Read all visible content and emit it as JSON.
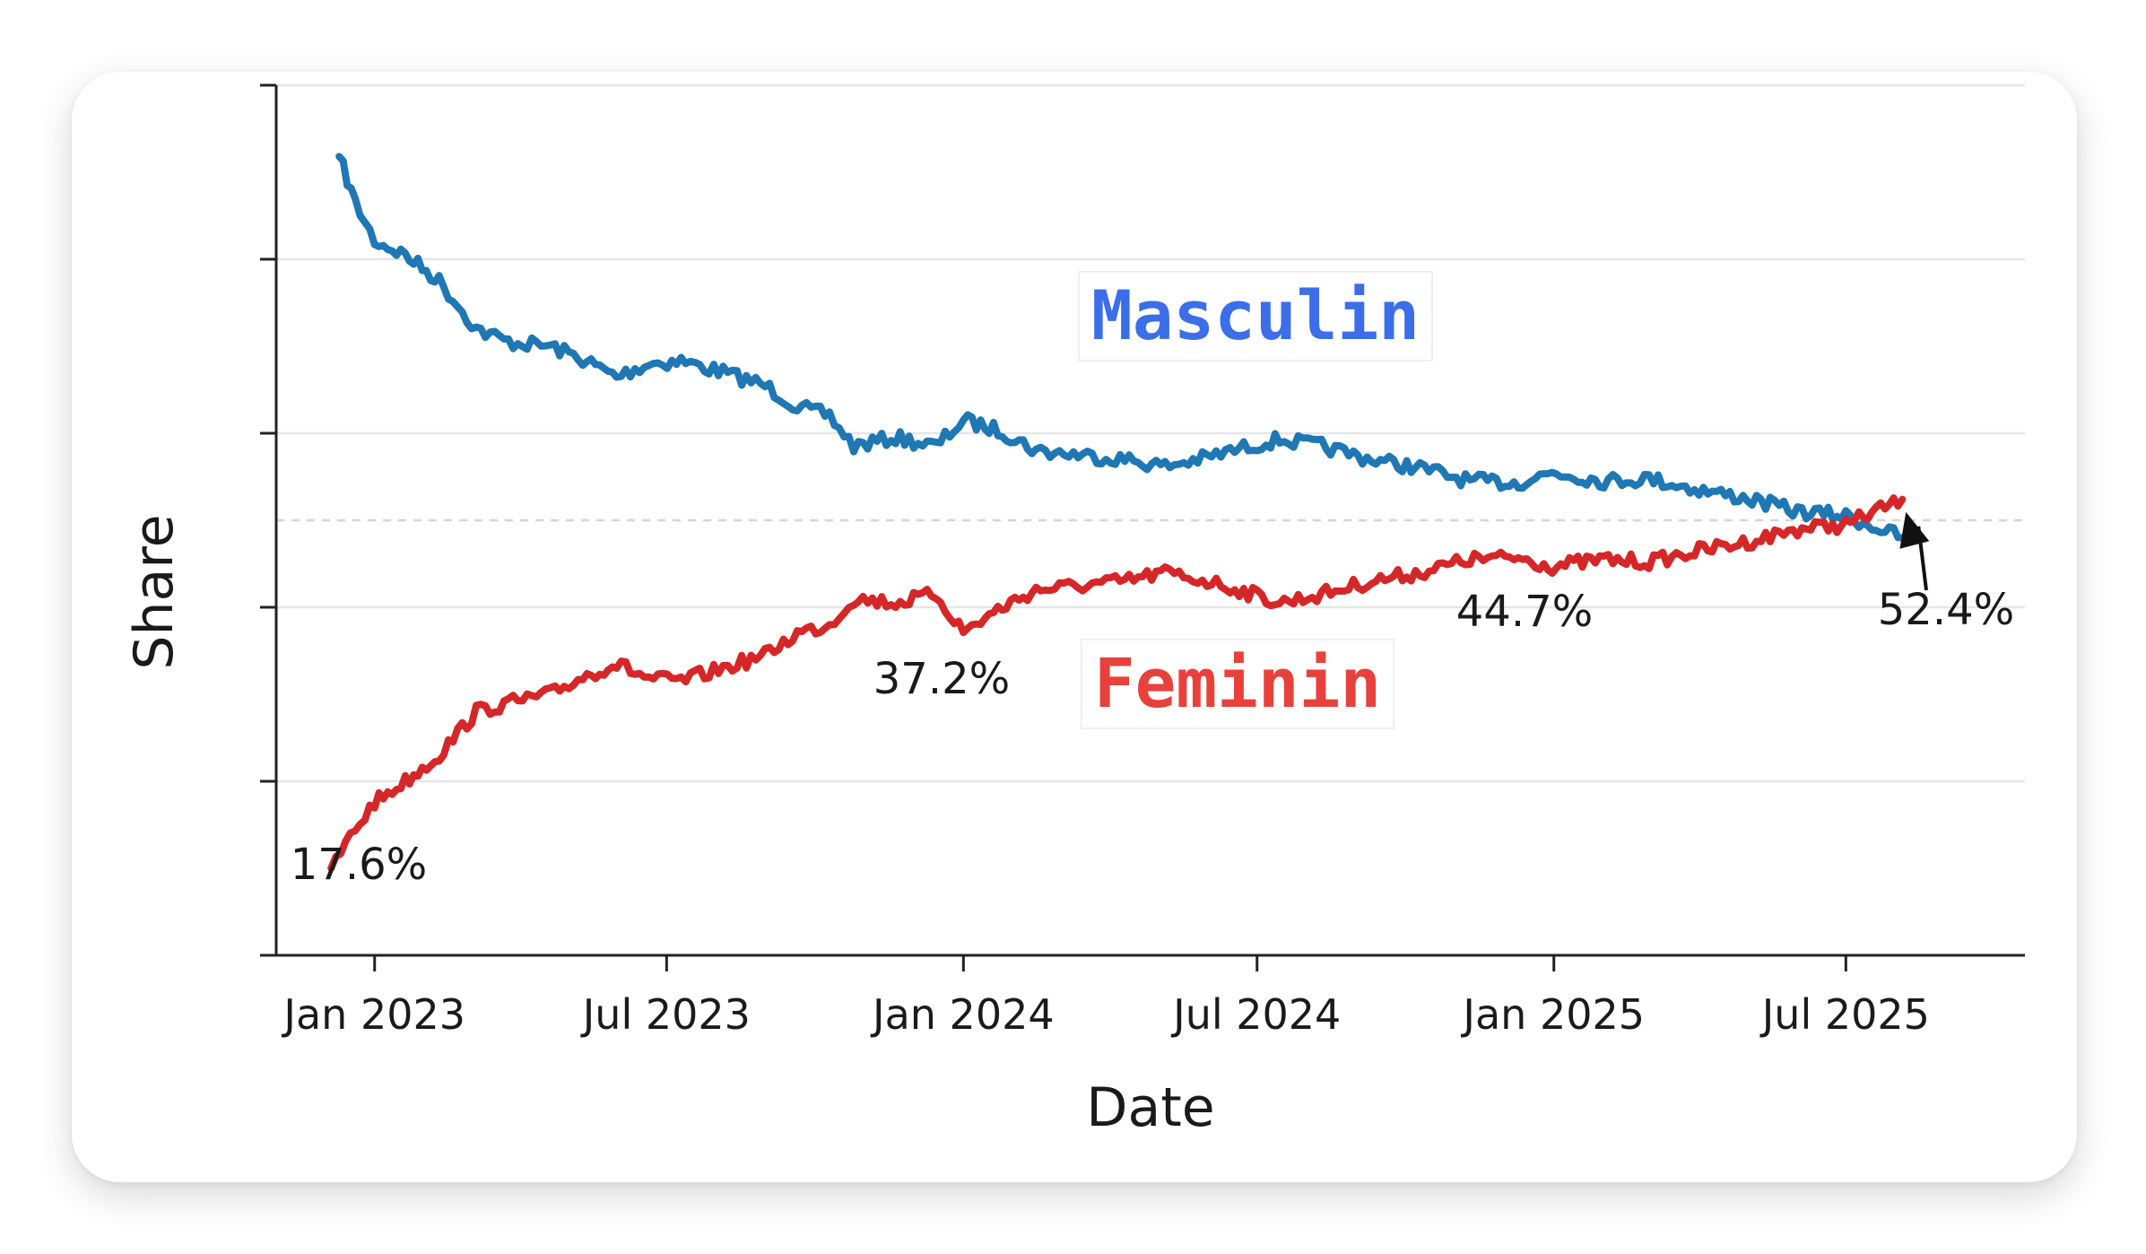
{
  "chart_data": {
    "type": "line",
    "title": "",
    "xlabel": "Date",
    "ylabel": "Share",
    "xlim": [
      "2022-11-01",
      "2025-10-20"
    ],
    "ylim": [
      0,
      100
    ],
    "y_ticks": [
      0,
      20,
      40,
      60,
      80,
      100
    ],
    "y_tick_labels_shown": false,
    "reference_line": {
      "y": 50,
      "style": "dashed"
    },
    "x_ticks": [
      {
        "date": "2023-01-01",
        "label": "Jan 2023"
      },
      {
        "date": "2023-07-01",
        "label": "Jul 2023"
      },
      {
        "date": "2024-01-01",
        "label": "Jan 2024"
      },
      {
        "date": "2024-07-01",
        "label": "Jul 2024"
      },
      {
        "date": "2025-01-01",
        "label": "Jan 2025"
      },
      {
        "date": "2025-07-01",
        "label": "Jul 2025"
      }
    ],
    "grid": "horizontal",
    "legend": "none",
    "series": [
      {
        "name": "Masculin",
        "color": "#1f77b4",
        "label_color": "#3b6ee8",
        "points": [
          [
            "2022-12-10",
            91.8
          ],
          [
            "2022-12-20",
            86.5
          ],
          [
            "2023-01-01",
            82.1
          ],
          [
            "2023-01-20",
            80.5
          ],
          [
            "2023-02-10",
            77.5
          ],
          [
            "2023-03-05",
            72.0
          ],
          [
            "2023-03-25",
            70.5
          ],
          [
            "2023-04-20",
            70.0
          ],
          [
            "2023-05-10",
            68.5
          ],
          [
            "2023-05-31",
            66.5
          ],
          [
            "2023-06-20",
            68.0
          ],
          [
            "2023-07-10",
            68.3
          ],
          [
            "2023-08-05",
            67.0
          ],
          [
            "2023-08-31",
            65.5
          ],
          [
            "2023-09-20",
            63.0
          ],
          [
            "2023-10-10",
            62.0
          ],
          [
            "2023-10-25",
            58.5
          ],
          [
            "2023-11-20",
            59.5
          ],
          [
            "2023-12-15",
            58.5
          ],
          [
            "2024-01-01",
            61.5
          ],
          [
            "2024-01-25",
            60.2
          ],
          [
            "2024-02-15",
            58.0
          ],
          [
            "2024-03-15",
            57.5
          ],
          [
            "2024-04-10",
            57.0
          ],
          [
            "2024-05-05",
            56.2
          ],
          [
            "2024-05-31",
            57.2
          ],
          [
            "2024-06-20",
            58.2
          ],
          [
            "2024-07-15",
            59.3
          ],
          [
            "2024-08-10",
            58.5
          ],
          [
            "2024-09-10",
            57.0
          ],
          [
            "2024-10-10",
            56.0
          ],
          [
            "2024-11-10",
            54.5
          ],
          [
            "2024-12-10",
            54.3
          ],
          [
            "2024-12-31",
            55.5
          ],
          [
            "2025-02-01",
            54.5
          ],
          [
            "2025-03-01",
            54.8
          ],
          [
            "2025-04-01",
            53.5
          ],
          [
            "2025-05-01",
            52.5
          ],
          [
            "2025-06-01",
            51.0
          ],
          [
            "2025-07-01",
            50.5
          ],
          [
            "2025-08-05",
            48.0
          ]
        ]
      },
      {
        "name": "Feminin",
        "color": "#d62728",
        "label_color": "#e8413c",
        "points": [
          [
            "2022-12-05",
            10.0
          ],
          [
            "2022-12-20",
            14.5
          ],
          [
            "2023-01-01",
            17.6
          ],
          [
            "2023-01-20",
            20.0
          ],
          [
            "2023-02-10",
            23.0
          ],
          [
            "2023-03-05",
            28.0
          ],
          [
            "2023-03-25",
            29.0
          ],
          [
            "2023-04-20",
            30.0
          ],
          [
            "2023-05-10",
            32.0
          ],
          [
            "2023-05-31",
            33.5
          ],
          [
            "2023-06-20",
            31.8
          ],
          [
            "2023-07-10",
            31.5
          ],
          [
            "2023-08-05",
            33.0
          ],
          [
            "2023-08-31",
            34.5
          ],
          [
            "2023-09-20",
            37.0
          ],
          [
            "2023-10-10",
            38.0
          ],
          [
            "2023-10-25",
            41.0
          ],
          [
            "2023-11-20",
            40.5
          ],
          [
            "2023-12-15",
            41.5
          ],
          [
            "2024-01-01",
            37.2
          ],
          [
            "2024-01-25",
            40.0
          ],
          [
            "2024-02-15",
            42.0
          ],
          [
            "2024-03-15",
            42.5
          ],
          [
            "2024-04-10",
            43.0
          ],
          [
            "2024-05-05",
            44.0
          ],
          [
            "2024-05-31",
            43.0
          ],
          [
            "2024-06-20",
            42.0
          ],
          [
            "2024-07-15",
            40.5
          ],
          [
            "2024-08-10",
            41.5
          ],
          [
            "2024-09-10",
            43.0
          ],
          [
            "2024-10-10",
            44.0
          ],
          [
            "2024-11-10",
            45.5
          ],
          [
            "2024-12-10",
            45.7
          ],
          [
            "2024-12-31",
            44.7
          ],
          [
            "2025-02-01",
            45.5
          ],
          [
            "2025-03-01",
            45.2
          ],
          [
            "2025-04-01",
            46.5
          ],
          [
            "2025-05-01",
            47.5
          ],
          [
            "2025-06-01",
            49.0
          ],
          [
            "2025-07-01",
            49.5
          ],
          [
            "2025-08-05",
            52.4
          ]
        ]
      }
    ],
    "annotations": [
      {
        "text": "17.6%",
        "date": "2023-01-01",
        "y": 17.6
      },
      {
        "text": "37.2%",
        "date": "2024-01-01",
        "y": 37.2
      },
      {
        "text": "44.7%",
        "date": "2024-12-31",
        "y": 44.7
      },
      {
        "text": "52.4%",
        "date": "2025-08-05",
        "y": 52.4,
        "arrow": true
      }
    ]
  }
}
